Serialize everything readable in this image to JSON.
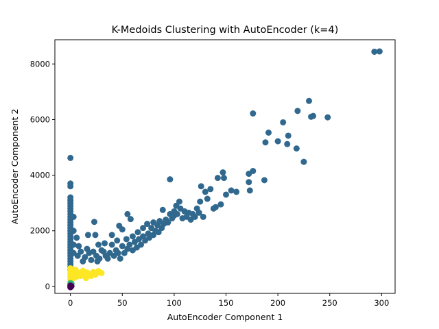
{
  "chart_data": {
    "type": "scatter",
    "title": "K-Medoids Clustering with AutoEncoder (k=4)",
    "xlabel": "AutoEncoder Component 1",
    "ylabel": "AutoEncoder Component 2",
    "xlim": [
      -15,
      313
    ],
    "ylim": [
      -250,
      8870
    ],
    "xticks": [
      0,
      50,
      100,
      150,
      200,
      250,
      300
    ],
    "yticks": [
      0,
      2000,
      4000,
      6000,
      8000
    ],
    "grid": false,
    "legend": "none",
    "series": [
      {
        "color": "#31688e",
        "points": [
          [
            0,
            4620
          ],
          [
            0,
            3700
          ],
          [
            0,
            3600
          ],
          [
            0,
            3200
          ],
          [
            0,
            3100
          ],
          [
            0,
            3000
          ],
          [
            0,
            2900
          ],
          [
            0,
            2800
          ],
          [
            0,
            2700
          ],
          [
            0,
            2600
          ],
          [
            0,
            2500
          ],
          [
            0,
            2400
          ],
          [
            0,
            2300
          ],
          [
            0,
            2200
          ],
          [
            0,
            2100
          ],
          [
            0,
            2000
          ],
          [
            0,
            1900
          ],
          [
            0,
            1800
          ],
          [
            0,
            1700
          ],
          [
            0,
            1600
          ],
          [
            0,
            1500
          ],
          [
            0,
            1400
          ],
          [
            0,
            1300
          ],
          [
            0,
            1200
          ],
          [
            0,
            1100
          ],
          [
            0,
            1000
          ],
          [
            0,
            900
          ],
          [
            0,
            800
          ],
          [
            0,
            700
          ],
          [
            0,
            600
          ],
          [
            3,
            2500
          ],
          [
            3,
            2000
          ],
          [
            3,
            1500
          ],
          [
            3,
            1200
          ],
          [
            6,
            1750
          ],
          [
            7,
            1100
          ],
          [
            8,
            1450
          ],
          [
            10,
            1250
          ],
          [
            12,
            900
          ],
          [
            14,
            1050
          ],
          [
            16,
            1350
          ],
          [
            17,
            1850
          ],
          [
            18,
            1200
          ],
          [
            20,
            950
          ],
          [
            22,
            1250
          ],
          [
            23,
            2320
          ],
          [
            24,
            1850
          ],
          [
            25,
            1100
          ],
          [
            26,
            900
          ],
          [
            27,
            1500
          ],
          [
            28,
            1000
          ],
          [
            30,
            1300
          ],
          [
            32,
            1250
          ],
          [
            33,
            1550
          ],
          [
            34,
            1100
          ],
          [
            36,
            1000
          ],
          [
            38,
            1200
          ],
          [
            40,
            1850
          ],
          [
            40,
            1500
          ],
          [
            42,
            1100
          ],
          [
            44,
            1300
          ],
          [
            45,
            1650
          ],
          [
            46,
            1200
          ],
          [
            47,
            2180
          ],
          [
            48,
            1000
          ],
          [
            50,
            1450
          ],
          [
            50,
            2050
          ],
          [
            52,
            1200
          ],
          [
            54,
            1700
          ],
          [
            55,
            1350
          ],
          [
            55,
            2600
          ],
          [
            57,
            1500
          ],
          [
            58,
            2420
          ],
          [
            60,
            1300
          ],
          [
            60,
            1800
          ],
          [
            62,
            1600
          ],
          [
            64,
            1400
          ],
          [
            65,
            1950
          ],
          [
            66,
            1700
          ],
          [
            68,
            1500
          ],
          [
            70,
            2100
          ],
          [
            70,
            1800
          ],
          [
            72,
            1650
          ],
          [
            74,
            2250
          ],
          [
            75,
            1900
          ],
          [
            76,
            1750
          ],
          [
            78,
            2100
          ],
          [
            80,
            1850
          ],
          [
            80,
            2300
          ],
          [
            82,
            2000
          ],
          [
            84,
            2200
          ],
          [
            85,
            1950
          ],
          [
            86,
            2350
          ],
          [
            88,
            2100
          ],
          [
            89,
            2750
          ],
          [
            90,
            2250
          ],
          [
            92,
            2400
          ],
          [
            94,
            2300
          ],
          [
            96,
            2600
          ],
          [
            96,
            3850
          ],
          [
            98,
            2450
          ],
          [
            100,
            2700
          ],
          [
            100,
            2550
          ],
          [
            102,
            2900
          ],
          [
            103,
            2600
          ],
          [
            105,
            3050
          ],
          [
            106,
            2800
          ],
          [
            108,
            2450
          ],
          [
            110,
            2700
          ],
          [
            112,
            2500
          ],
          [
            114,
            2650
          ],
          [
            116,
            2400
          ],
          [
            118,
            2600
          ],
          [
            120,
            2500
          ],
          [
            122,
            2800
          ],
          [
            124,
            2650
          ],
          [
            125,
            3050
          ],
          [
            126,
            3600
          ],
          [
            128,
            2500
          ],
          [
            130,
            3400
          ],
          [
            132,
            3150
          ],
          [
            135,
            3500
          ],
          [
            138,
            2800
          ],
          [
            140,
            2850
          ],
          [
            142,
            3900
          ],
          [
            145,
            2950
          ],
          [
            147,
            4100
          ],
          [
            148,
            3900
          ],
          [
            150,
            3300
          ],
          [
            155,
            3450
          ],
          [
            160,
            3400
          ],
          [
            172,
            4050
          ],
          [
            172,
            3750
          ],
          [
            173,
            3450
          ],
          [
            176,
            4150
          ],
          [
            176,
            6220
          ],
          [
            187,
            3820
          ],
          [
            188,
            5180
          ],
          [
            191,
            5530
          ],
          [
            200,
            5220
          ],
          [
            205,
            5900
          ],
          [
            209,
            5120
          ],
          [
            210,
            5420
          ],
          [
            218,
            4960
          ],
          [
            219,
            6310
          ],
          [
            225,
            4480
          ],
          [
            230,
            6670
          ],
          [
            232,
            6100
          ],
          [
            234,
            6130
          ],
          [
            248,
            6080
          ],
          [
            293,
            8440
          ],
          [
            298,
            8450
          ]
        ]
      },
      {
        "color": "#fde725",
        "points": [
          [
            0,
            650
          ],
          [
            0,
            550
          ],
          [
            0,
            450
          ],
          [
            0,
            350
          ],
          [
            0,
            250
          ],
          [
            0,
            150
          ],
          [
            2,
            500
          ],
          [
            3,
            300
          ],
          [
            4,
            420
          ],
          [
            5,
            600
          ],
          [
            6,
            350
          ],
          [
            8,
            480
          ],
          [
            10,
            380
          ],
          [
            12,
            560
          ],
          [
            14,
            420
          ],
          [
            15,
            300
          ],
          [
            16,
            500
          ],
          [
            18,
            450
          ],
          [
            20,
            380
          ],
          [
            22,
            520
          ],
          [
            24,
            420
          ],
          [
            25,
            470
          ],
          [
            27,
            550
          ],
          [
            30,
            480
          ]
        ]
      },
      {
        "color": "#35b779",
        "points": [
          [
            0,
            80
          ],
          [
            0,
            120
          ],
          [
            1,
            100
          ]
        ]
      },
      {
        "color": "#440154",
        "points": [
          [
            0,
            0
          ],
          [
            0,
            30
          ],
          [
            0,
            -30
          ],
          [
            1,
            10
          ]
        ]
      }
    ]
  }
}
